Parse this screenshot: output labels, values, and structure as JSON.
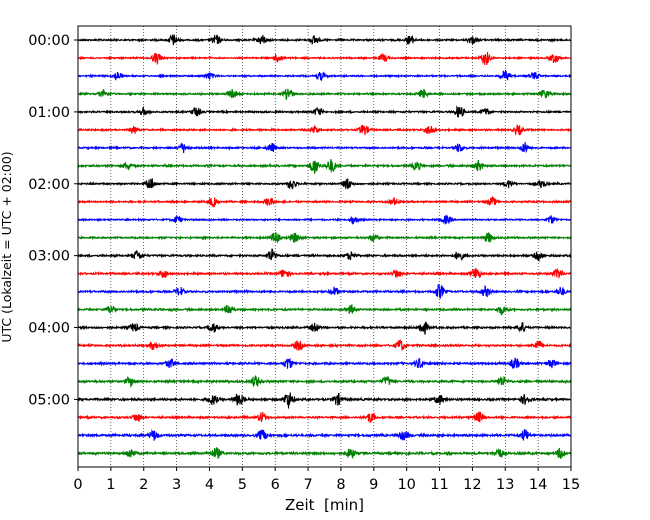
{
  "chart_data": {
    "type": "line",
    "title": "",
    "xlabel": "Zeit  [min]",
    "ylabel": "UTC (Lokalzeit = UTC + 02:00)",
    "xlim": [
      0,
      15
    ],
    "x_ticks": [
      0,
      1,
      2,
      3,
      4,
      5,
      6,
      7,
      8,
      9,
      10,
      11,
      12,
      13,
      14,
      15
    ],
    "x_tick_labels": [
      "0",
      "1",
      "2",
      "3",
      "4",
      "5",
      "6",
      "7",
      "8",
      "9",
      "10",
      "11",
      "12",
      "13",
      "14",
      "15"
    ],
    "y_tick_labels": [
      "00:00",
      "01:00",
      "02:00",
      "03:00",
      "04:00",
      "05:00"
    ],
    "minutes_per_trace": 15,
    "grid": "vertical dotted",
    "trace_colors": [
      "#000000",
      "#ff0000",
      "#0000ff",
      "#008000"
    ],
    "traces": [
      {
        "start": "00:00",
        "color": "#000000",
        "amplitude": 0.45,
        "events": [
          [
            2.9,
            0.9
          ],
          [
            4.2,
            0.8
          ],
          [
            5.6,
            0.8
          ],
          [
            7.2,
            0.7
          ],
          [
            10.1,
            0.7
          ],
          [
            12.0,
            0.6
          ]
        ]
      },
      {
        "start": "00:15",
        "color": "#ff0000",
        "amplitude": 0.4,
        "events": [
          [
            2.4,
            0.9
          ],
          [
            6.1,
            0.7
          ],
          [
            9.3,
            0.6
          ],
          [
            12.4,
            1.2
          ],
          [
            14.5,
            0.8
          ]
        ]
      },
      {
        "start": "00:30",
        "color": "#0000ff",
        "amplitude": 0.4,
        "events": [
          [
            1.2,
            0.7
          ],
          [
            4.0,
            0.6
          ],
          [
            7.4,
            0.7
          ],
          [
            13.0,
            0.9
          ],
          [
            13.9,
            0.6
          ]
        ]
      },
      {
        "start": "00:45",
        "color": "#008000",
        "amplitude": 0.45,
        "events": [
          [
            0.8,
            0.6
          ],
          [
            4.7,
            0.7
          ],
          [
            6.4,
            1.0
          ],
          [
            10.5,
            0.7
          ],
          [
            14.2,
            0.7
          ]
        ]
      },
      {
        "start": "01:00",
        "color": "#000000",
        "amplitude": 0.45,
        "events": [
          [
            2.0,
            0.6
          ],
          [
            3.6,
            0.8
          ],
          [
            7.3,
            0.7
          ],
          [
            11.6,
            1.0
          ],
          [
            12.4,
            0.6
          ]
        ]
      },
      {
        "start": "01:15",
        "color": "#ff0000",
        "amplitude": 0.45,
        "events": [
          [
            1.7,
            0.6
          ],
          [
            7.2,
            0.6
          ],
          [
            8.7,
            0.9
          ],
          [
            10.7,
            0.8
          ],
          [
            13.4,
            0.8
          ]
        ]
      },
      {
        "start": "01:30",
        "color": "#0000ff",
        "amplitude": 0.45,
        "events": [
          [
            3.2,
            0.8
          ],
          [
            5.9,
            0.7
          ],
          [
            11.6,
            0.7
          ],
          [
            13.6,
            0.8
          ]
        ]
      },
      {
        "start": "01:45",
        "color": "#008000",
        "amplitude": 0.5,
        "events": [
          [
            1.5,
            0.6
          ],
          [
            7.2,
            1.3
          ],
          [
            7.7,
            1.1
          ],
          [
            10.3,
            0.7
          ],
          [
            12.2,
            0.8
          ]
        ]
      },
      {
        "start": "02:00",
        "color": "#000000",
        "amplitude": 0.45,
        "events": [
          [
            2.2,
            1.0
          ],
          [
            6.5,
            0.9
          ],
          [
            8.2,
            0.9
          ],
          [
            13.1,
            0.7
          ],
          [
            14.1,
            0.6
          ]
        ]
      },
      {
        "start": "02:15",
        "color": "#ff0000",
        "amplitude": 0.45,
        "events": [
          [
            4.1,
            0.7
          ],
          [
            5.8,
            0.7
          ],
          [
            9.6,
            0.6
          ],
          [
            12.6,
            0.7
          ]
        ]
      },
      {
        "start": "02:30",
        "color": "#0000ff",
        "amplitude": 0.4,
        "events": [
          [
            3.0,
            0.6
          ],
          [
            8.4,
            0.6
          ],
          [
            11.2,
            0.7
          ],
          [
            14.4,
            0.6
          ]
        ]
      },
      {
        "start": "02:45",
        "color": "#008000",
        "amplitude": 0.45,
        "events": [
          [
            6.0,
            0.9
          ],
          [
            6.6,
            0.8
          ],
          [
            9.0,
            0.6
          ],
          [
            12.5,
            0.8
          ]
        ]
      },
      {
        "start": "03:00",
        "color": "#000000",
        "amplitude": 0.5,
        "events": [
          [
            1.8,
            0.8
          ],
          [
            5.9,
            1.0
          ],
          [
            8.3,
            0.7
          ],
          [
            11.6,
            0.8
          ],
          [
            14.0,
            0.7
          ]
        ]
      },
      {
        "start": "03:15",
        "color": "#ff0000",
        "amplitude": 0.5,
        "events": [
          [
            2.6,
            0.7
          ],
          [
            6.3,
            0.8
          ],
          [
            9.7,
            0.7
          ],
          [
            12.1,
            1.0
          ],
          [
            14.6,
            0.8
          ]
        ]
      },
      {
        "start": "03:30",
        "color": "#0000ff",
        "amplitude": 0.5,
        "events": [
          [
            3.1,
            0.7
          ],
          [
            7.8,
            0.7
          ],
          [
            11.0,
            1.2
          ],
          [
            12.4,
            0.8
          ],
          [
            14.7,
            0.7
          ]
        ]
      },
      {
        "start": "03:45",
        "color": "#008000",
        "amplitude": 0.5,
        "events": [
          [
            1.0,
            0.7
          ],
          [
            4.6,
            0.8
          ],
          [
            8.3,
            0.7
          ],
          [
            12.9,
            0.7
          ]
        ]
      },
      {
        "start": "04:00",
        "color": "#000000",
        "amplitude": 0.5,
        "events": [
          [
            1.7,
            0.7
          ],
          [
            4.1,
            0.8
          ],
          [
            7.2,
            0.7
          ],
          [
            10.5,
            1.2
          ],
          [
            13.5,
            0.8
          ]
        ]
      },
      {
        "start": "04:15",
        "color": "#ff0000",
        "amplitude": 0.5,
        "events": [
          [
            2.3,
            0.7
          ],
          [
            6.7,
            0.8
          ],
          [
            9.8,
            0.9
          ],
          [
            14.0,
            0.8
          ]
        ]
      },
      {
        "start": "04:30",
        "color": "#0000ff",
        "amplitude": 0.55,
        "events": [
          [
            2.8,
            0.7
          ],
          [
            6.4,
            0.9
          ],
          [
            10.4,
            0.8
          ],
          [
            13.3,
            0.9
          ],
          [
            14.4,
            0.7
          ]
        ]
      },
      {
        "start": "04:45",
        "color": "#008000",
        "amplitude": 0.55,
        "events": [
          [
            1.6,
            0.7
          ],
          [
            5.4,
            0.9
          ],
          [
            9.4,
            0.8
          ],
          [
            12.9,
            0.8
          ]
        ]
      },
      {
        "start": "05:00",
        "color": "#000000",
        "amplitude": 0.6,
        "events": [
          [
            4.1,
            0.8
          ],
          [
            4.9,
            1.1
          ],
          [
            6.4,
            1.4
          ],
          [
            7.9,
            0.9
          ],
          [
            11.0,
            0.8
          ],
          [
            13.6,
            0.8
          ]
        ]
      },
      {
        "start": "05:15",
        "color": "#ff0000",
        "amplitude": 0.5,
        "events": [
          [
            1.8,
            0.7
          ],
          [
            5.6,
            0.8
          ],
          [
            8.9,
            0.8
          ],
          [
            12.2,
            0.9
          ]
        ]
      },
      {
        "start": "05:30",
        "color": "#0000ff",
        "amplitude": 0.6,
        "events": [
          [
            2.3,
            0.8
          ],
          [
            5.6,
            0.9
          ],
          [
            9.9,
            0.8
          ],
          [
            13.6,
            0.9
          ]
        ]
      },
      {
        "start": "05:45",
        "color": "#008000",
        "amplitude": 0.6,
        "events": [
          [
            1.6,
            0.8
          ],
          [
            4.2,
            0.9
          ],
          [
            8.3,
            0.8
          ],
          [
            12.8,
            0.8
          ],
          [
            14.7,
            0.8
          ]
        ]
      }
    ]
  }
}
